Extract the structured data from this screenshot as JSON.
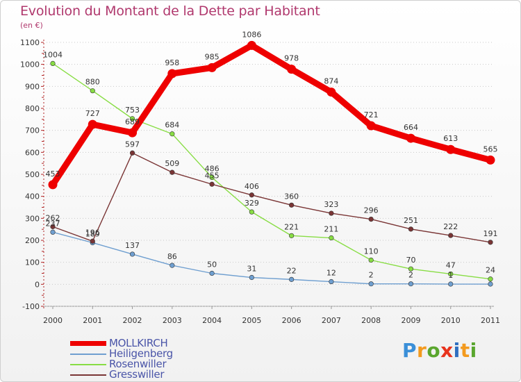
{
  "title": "Evolution du Montant de la Dette par Habitant",
  "subtitle": "(en €)",
  "brand": {
    "text": "Proxiti",
    "letter_colors": [
      "#3a8fd8",
      "#f39a1e",
      "#5aa62e",
      "#e8331d",
      "#2f6fc0",
      "#f39a1e",
      "#5aa62e"
    ]
  },
  "chart_data": {
    "type": "line",
    "x": [
      "2000",
      "2001",
      "2002",
      "2003",
      "2004",
      "2005",
      "2006",
      "2007",
      "2008",
      "2009",
      "2010",
      "2011"
    ],
    "ylim": [
      -100,
      1100
    ],
    "yticks": [
      -100,
      0,
      100,
      200,
      300,
      400,
      500,
      600,
      700,
      800,
      900,
      1000,
      1100
    ],
    "grid": "horizontal dotted",
    "legend_position": "bottom-left",
    "series": [
      {
        "name": "MOLLKIRCH",
        "color": "#ee0000",
        "values": [
          453,
          727,
          689,
          958,
          985,
          1086,
          978,
          874,
          721,
          664,
          613,
          565
        ],
        "labels": [
          "453",
          "727",
          "689",
          "958",
          "985",
          "1086",
          "978",
          "874",
          "721",
          "664",
          "613",
          "565"
        ]
      },
      {
        "name": "Heiligenberg",
        "color": "#6f9fd0",
        "values": [
          237,
          189,
          137,
          86,
          50,
          31,
          22,
          12,
          2,
          2,
          1,
          1
        ],
        "labels": [
          "237",
          "189",
          "137",
          "86",
          "50",
          "31",
          "22",
          "12",
          "2",
          "2",
          "1",
          ""
        ]
      },
      {
        "name": "Rosenwiller",
        "color": "#88dd44",
        "values": [
          1004,
          880,
          753,
          684,
          486,
          329,
          221,
          211,
          110,
          70,
          47,
          24
        ],
        "labels": [
          "1004",
          "880",
          "753",
          "684",
          "486",
          "329",
          "221",
          "211",
          "110",
          "70",
          "47",
          "24"
        ]
      },
      {
        "name": "Gresswiller",
        "color": "#7a3535",
        "values": [
          262,
          196,
          597,
          509,
          455,
          406,
          360,
          323,
          296,
          251,
          222,
          191
        ],
        "labels": [
          "262",
          "196",
          "597",
          "509",
          "455",
          "406",
          "360",
          "323",
          "296",
          "251",
          "222",
          "191"
        ]
      }
    ]
  }
}
